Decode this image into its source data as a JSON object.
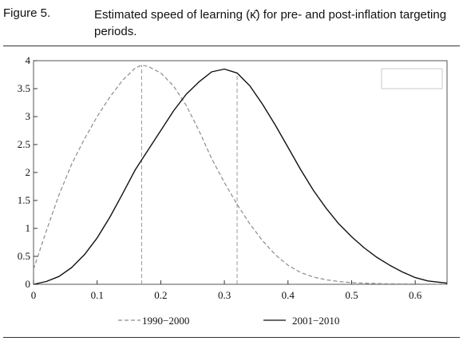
{
  "figure": {
    "label": "Figure 5.",
    "caption": "Estimated speed of learning (κ̂) for pre- and post-inflation targeting periods."
  },
  "chart_data": {
    "type": "line",
    "title": "",
    "xlabel": "",
    "ylabel": "",
    "xlim": [
      0,
      0.65
    ],
    "ylim": [
      0,
      4
    ],
    "xticks": [
      0,
      0.1,
      0.2,
      0.3,
      0.4,
      0.5,
      0.6
    ],
    "xtick_labels": [
      "0",
      "0.1",
      "0.2",
      "0.3",
      "0.4",
      "0.5",
      "0.6"
    ],
    "yticks": [
      0,
      0.5,
      1,
      1.5,
      2,
      2.5,
      3,
      3.5,
      4
    ],
    "ytick_labels": [
      "0",
      "0.5",
      "1",
      "1.5",
      "2",
      "2.5",
      "3",
      "3.5",
      "4"
    ],
    "grid": false,
    "legend_placement": "bottom",
    "series": [
      {
        "name": "1990–2000",
        "style": "dashed",
        "color": "#8c8c8c",
        "x": [
          0,
          0.02,
          0.04,
          0.06,
          0.08,
          0.1,
          0.12,
          0.14,
          0.16,
          0.17,
          0.18,
          0.2,
          0.22,
          0.24,
          0.26,
          0.28,
          0.3,
          0.32,
          0.34,
          0.36,
          0.38,
          0.4,
          0.42,
          0.44,
          0.46,
          0.48,
          0.5,
          0.52,
          0.55,
          0.6,
          0.65
        ],
        "y": [
          0.27,
          0.95,
          1.6,
          2.15,
          2.6,
          3.0,
          3.35,
          3.65,
          3.87,
          3.92,
          3.9,
          3.78,
          3.55,
          3.2,
          2.75,
          2.25,
          1.82,
          1.43,
          1.08,
          0.78,
          0.53,
          0.34,
          0.21,
          0.13,
          0.08,
          0.05,
          0.03,
          0.02,
          0.01,
          0.005,
          0.0
        ]
      },
      {
        "name": "2001–2010",
        "style": "solid",
        "color": "#111111",
        "x": [
          0,
          0.02,
          0.04,
          0.06,
          0.08,
          0.1,
          0.12,
          0.14,
          0.16,
          0.18,
          0.2,
          0.22,
          0.24,
          0.26,
          0.28,
          0.3,
          0.32,
          0.34,
          0.36,
          0.38,
          0.4,
          0.42,
          0.44,
          0.46,
          0.48,
          0.5,
          0.52,
          0.54,
          0.56,
          0.58,
          0.6,
          0.62,
          0.65
        ],
        "y": [
          0.0,
          0.05,
          0.14,
          0.3,
          0.53,
          0.83,
          1.2,
          1.62,
          2.05,
          2.4,
          2.75,
          3.1,
          3.4,
          3.62,
          3.8,
          3.85,
          3.78,
          3.55,
          3.22,
          2.85,
          2.45,
          2.05,
          1.68,
          1.36,
          1.08,
          0.85,
          0.65,
          0.48,
          0.34,
          0.22,
          0.12,
          0.06,
          0.02
        ]
      }
    ],
    "reference_lines": [
      {
        "x": 0.17,
        "series": "1990–2000"
      },
      {
        "x": 0.32,
        "series": "2001–2010"
      }
    ],
    "legend": [
      {
        "label": "1990−2000",
        "style": "dashed"
      },
      {
        "label": "2001−2010",
        "style": "solid"
      }
    ]
  }
}
